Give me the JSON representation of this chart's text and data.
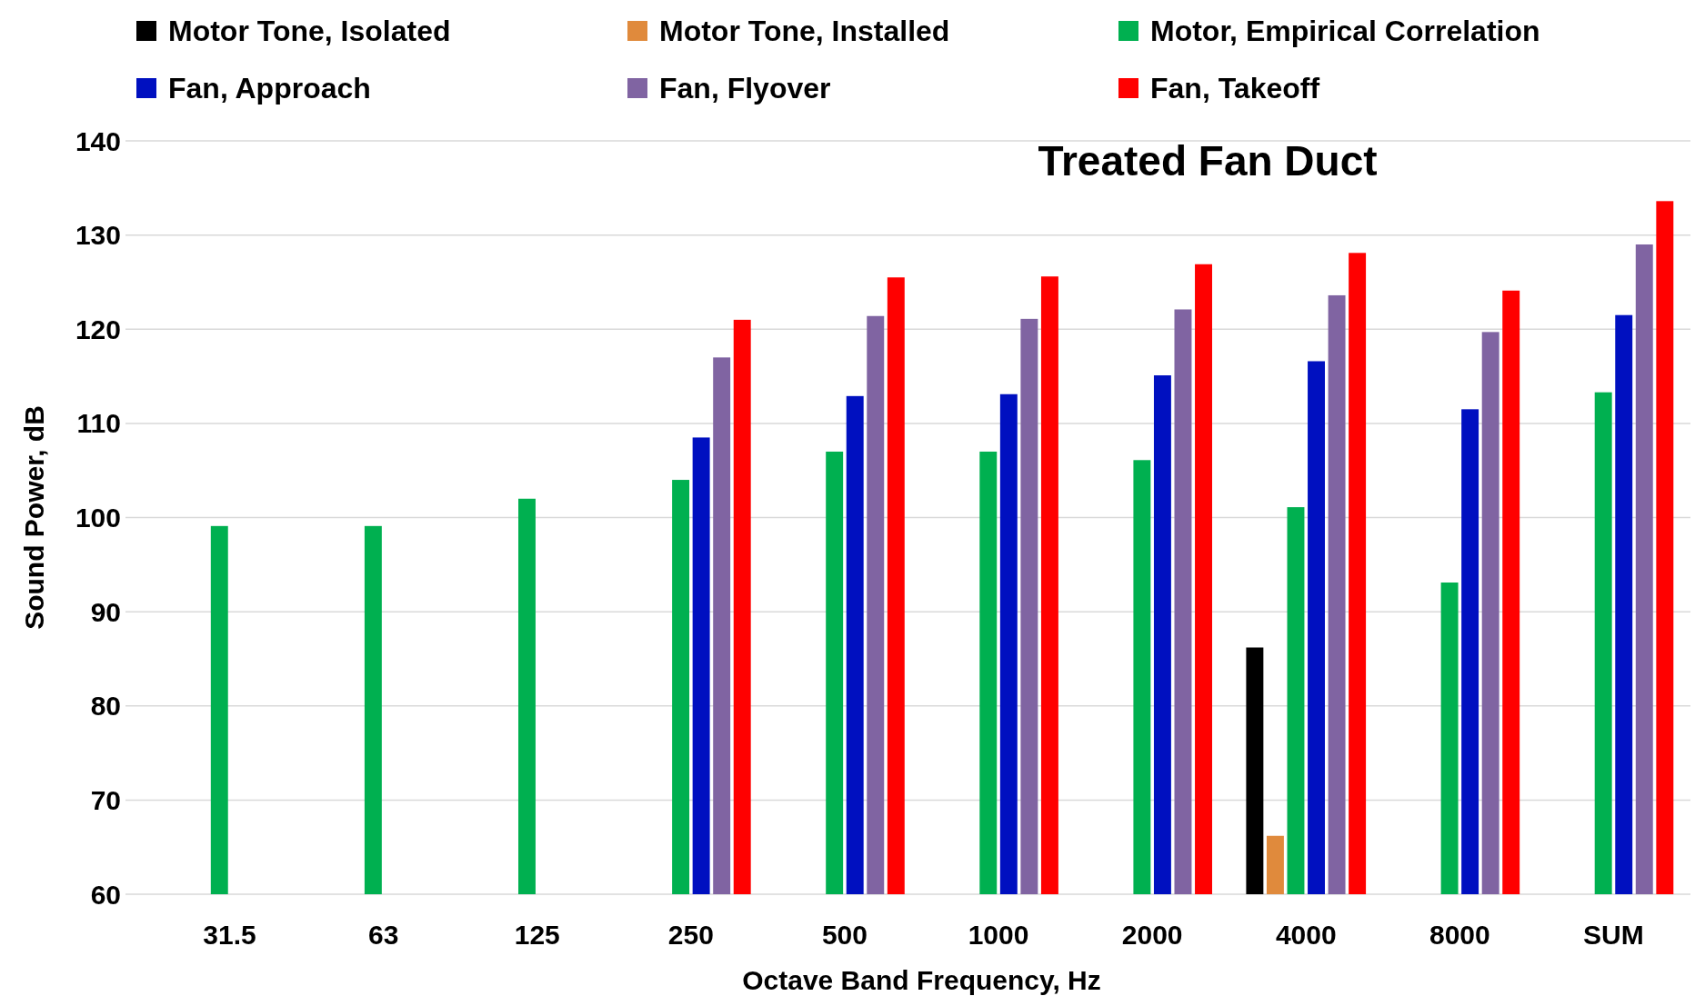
{
  "chart_data": {
    "type": "bar",
    "title": "Treated Fan Duct",
    "xlabel": "Octave Band Frequency, Hz",
    "ylabel": "Sound Power, dB",
    "categories": [
      "31.5",
      "63",
      "125",
      "250",
      "500",
      "1000",
      "2000",
      "4000",
      "8000",
      "SUM"
    ],
    "series": [
      {
        "name": "Motor Tone, Isolated",
        "color": "#000000",
        "values": [
          null,
          null,
          null,
          null,
          null,
          null,
          null,
          86.2,
          null,
          null
        ]
      },
      {
        "name": "Motor Tone, Installed",
        "color": "#e08a3c",
        "values": [
          null,
          null,
          null,
          null,
          null,
          null,
          null,
          66.2,
          null,
          null
        ]
      },
      {
        "name": "Motor, Empirical Correlation",
        "color": "#00b050",
        "values": [
          99.1,
          99.1,
          102,
          104,
          107,
          107,
          106.1,
          101.1,
          93.1,
          113.3
        ]
      },
      {
        "name": "Fan, Approach",
        "color": "#0010c0",
        "values": [
          null,
          null,
          null,
          108.5,
          112.9,
          113.1,
          115.1,
          116.6,
          111.5,
          121.5
        ]
      },
      {
        "name": "Fan, Flyover",
        "color": "#8064a2",
        "values": [
          null,
          null,
          null,
          117,
          121.4,
          121.1,
          122.1,
          123.6,
          119.7,
          129
        ]
      },
      {
        "name": "Fan, Takeoff",
        "color": "#ff0000",
        "values": [
          null,
          null,
          null,
          121,
          125.5,
          125.6,
          126.9,
          128.1,
          124.1,
          133.6
        ]
      }
    ],
    "ylim": [
      60,
      140
    ],
    "yticks": [
      60,
      70,
      80,
      90,
      100,
      110,
      120,
      130,
      140
    ],
    "grid": "y",
    "legend": "top"
  }
}
